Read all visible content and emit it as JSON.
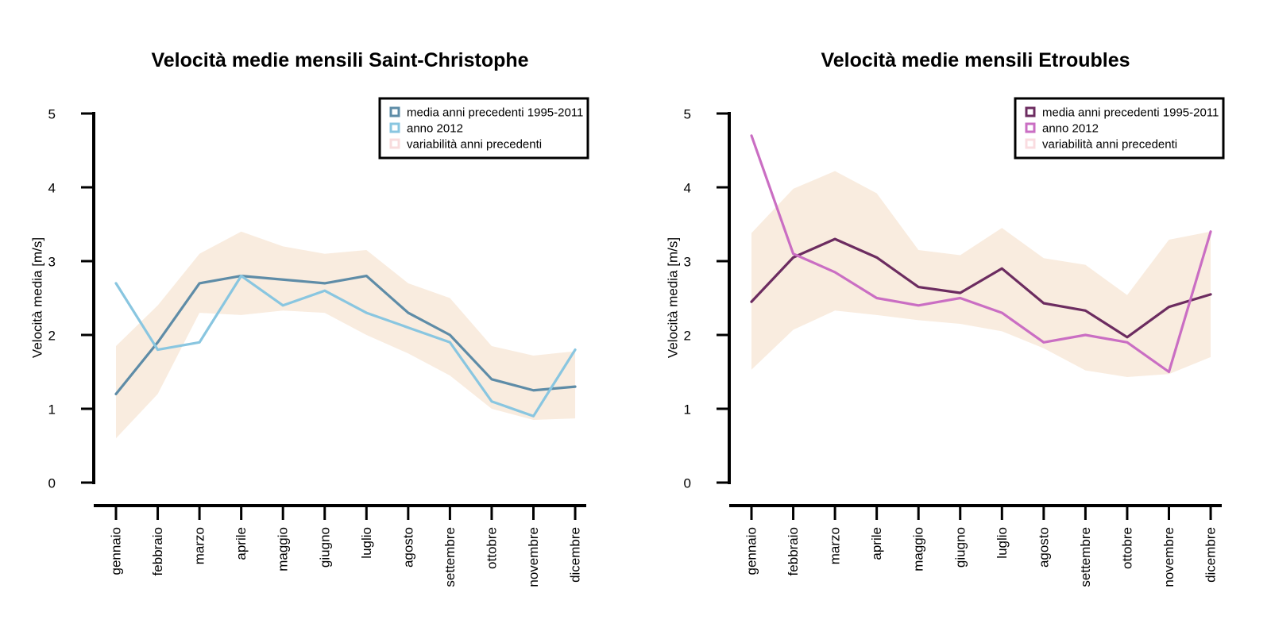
{
  "figure": {
    "background": "#ffffff",
    "axis_color": "#000000",
    "months": [
      "gennaio",
      "febbraio",
      "marzo",
      "aprile",
      "maggio",
      "giugno",
      "luglio",
      "agosto",
      "settembre",
      "ottobre",
      "novembre",
      "dicembre"
    ],
    "legend_labels": [
      "media anni precedenti 1995-2011",
      "anno 2012",
      "variabilità anni precedenti"
    ]
  },
  "chart_data": [
    {
      "type": "line",
      "title": "Velocità medie mensili Saint-Christophe",
      "xlabel": "",
      "ylabel": "Velocità media [m/s]",
      "ylim": [
        0,
        5
      ],
      "yticks": [
        0,
        1,
        2,
        3,
        4,
        5
      ],
      "grid": false,
      "legend_position": "top-right",
      "categories": [
        "gennaio",
        "febbraio",
        "marzo",
        "aprile",
        "maggio",
        "giugno",
        "luglio",
        "agosto",
        "settembre",
        "ottobre",
        "novembre",
        "dicembre"
      ],
      "series": [
        {
          "name": "media anni precedenti 1995-2011",
          "color": "#5e8ca7",
          "values": [
            1.2,
            1.9,
            2.7,
            2.8,
            2.75,
            2.7,
            2.8,
            2.3,
            2.0,
            1.4,
            1.25,
            1.3
          ]
        },
        {
          "name": "anno 2012",
          "color": "#89c6e0",
          "values": [
            2.7,
            1.8,
            1.9,
            2.8,
            2.4,
            2.6,
            2.3,
            2.1,
            1.9,
            1.1,
            0.9,
            1.8
          ]
        }
      ],
      "band": {
        "name": "variabilità anni precedenti",
        "fill": "#f9ecdf",
        "legend_color": "#f8dcdd",
        "low": [
          0.6,
          1.2,
          2.3,
          2.27,
          2.33,
          2.3,
          2.0,
          1.75,
          1.45,
          1.0,
          0.85,
          0.87
        ],
        "high": [
          1.85,
          2.4,
          3.1,
          3.4,
          3.2,
          3.1,
          3.15,
          2.7,
          2.5,
          1.85,
          1.72,
          1.78
        ]
      }
    },
    {
      "type": "line",
      "title": "Velocità medie mensili Etroubles",
      "xlabel": "",
      "ylabel": "Velocità media [m/s]",
      "ylim": [
        0,
        5
      ],
      "yticks": [
        0,
        1,
        2,
        3,
        4,
        5
      ],
      "grid": false,
      "legend_position": "top-right",
      "categories": [
        "gennaio",
        "febbraio",
        "marzo",
        "aprile",
        "maggio",
        "giugno",
        "luglio",
        "agosto",
        "settembre",
        "ottobre",
        "novembre",
        "dicembre"
      ],
      "series": [
        {
          "name": "media anni precedenti 1995-2011",
          "color": "#6c2c60",
          "values": [
            2.45,
            3.05,
            3.3,
            3.05,
            2.65,
            2.57,
            2.9,
            2.43,
            2.33,
            1.97,
            2.38,
            2.55
          ]
        },
        {
          "name": "anno 2012",
          "color": "#ca6ec3",
          "values": [
            4.7,
            3.1,
            2.85,
            2.5,
            2.4,
            2.5,
            2.3,
            1.9,
            2.0,
            1.9,
            1.5,
            3.4
          ]
        }
      ],
      "band": {
        "name": "variabilità anni precedenti",
        "fill": "#f9ecdf",
        "legend_color": "#fadce0",
        "low": [
          1.53,
          2.07,
          2.33,
          2.27,
          2.2,
          2.15,
          2.05,
          1.82,
          1.52,
          1.43,
          1.47,
          1.7
        ],
        "high": [
          3.38,
          3.98,
          4.22,
          3.92,
          3.15,
          3.08,
          3.45,
          3.04,
          2.95,
          2.54,
          3.29,
          3.4
        ]
      }
    }
  ]
}
